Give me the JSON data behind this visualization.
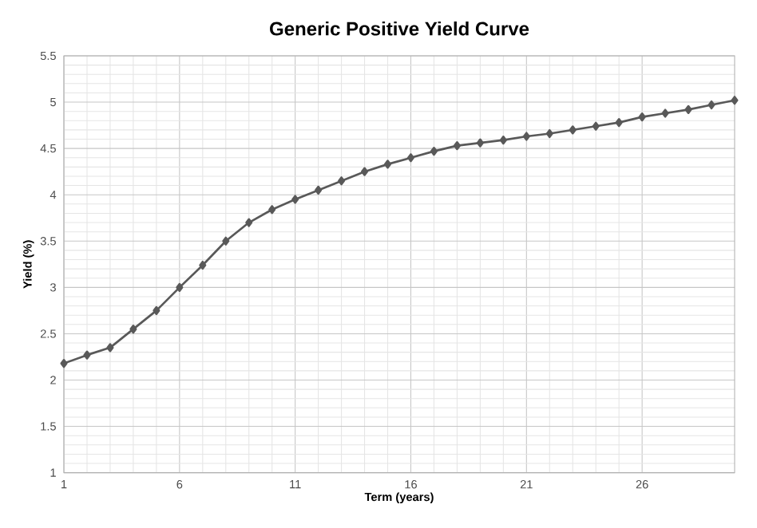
{
  "chart_data": {
    "type": "line",
    "title": "Generic Positive Yield Curve",
    "xlabel": "Term (years)",
    "ylabel": "Yield (%)",
    "x": [
      1,
      2,
      3,
      4,
      5,
      6,
      7,
      8,
      9,
      10,
      11,
      12,
      13,
      14,
      15,
      16,
      17,
      18,
      19,
      20,
      21,
      22,
      23,
      24,
      25,
      26,
      27,
      28,
      29,
      30
    ],
    "values": [
      2.18,
      2.27,
      2.35,
      2.55,
      2.75,
      3.0,
      3.24,
      3.5,
      3.7,
      3.84,
      3.95,
      4.05,
      4.15,
      4.25,
      4.33,
      4.4,
      4.47,
      4.53,
      4.56,
      4.59,
      4.63,
      4.66,
      4.7,
      4.74,
      4.78,
      4.84,
      4.88,
      4.92,
      4.97,
      5.02
    ],
    "color": "#595959",
    "marker": "diamond",
    "line_style": "solid",
    "grid": true,
    "xlim": [
      1,
      30
    ],
    "ylim": [
      1,
      5.5
    ],
    "xticks": [
      1,
      6,
      11,
      16,
      21,
      26
    ],
    "yticks": [
      1,
      1.5,
      2,
      2.5,
      3,
      3.5,
      4,
      4.5,
      5,
      5.5
    ]
  }
}
